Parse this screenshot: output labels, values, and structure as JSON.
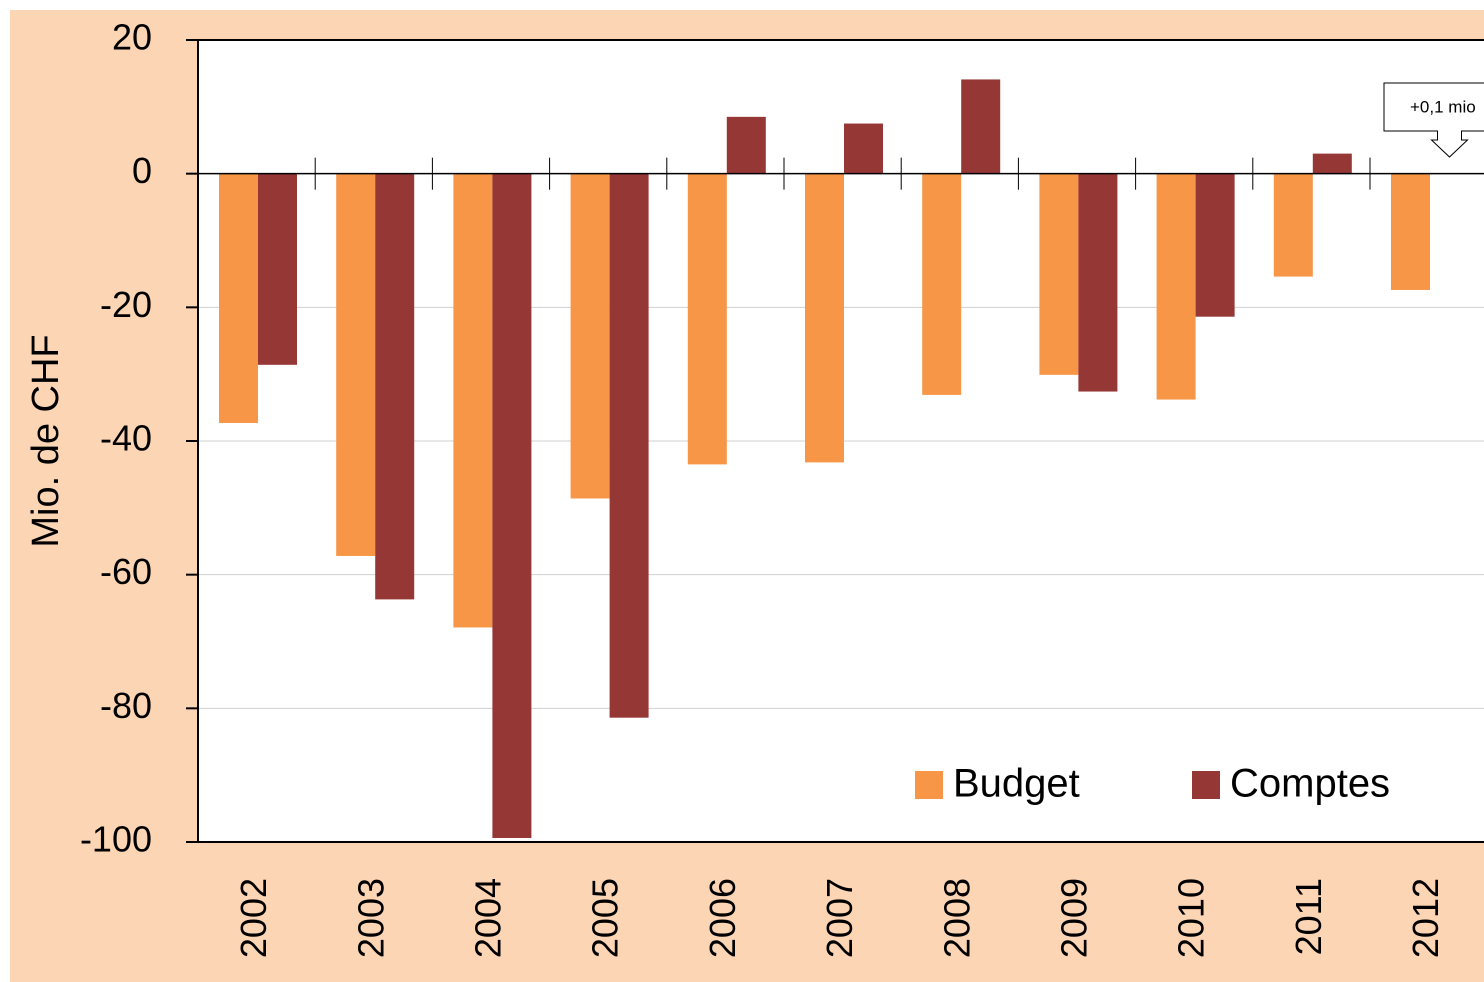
{
  "chart_data": {
    "type": "bar",
    "y_label": "Mio. de CHF",
    "categories": [
      "2002",
      "2003",
      "2004",
      "2005",
      "2006",
      "2007",
      "2008",
      "2009",
      "2010",
      "2011",
      "2012"
    ],
    "series": [
      {
        "name": "Budget",
        "color": "#F79646",
        "values": [
          -37.3,
          -57.2,
          -67.9,
          -48.6,
          -43.5,
          -43.2,
          -33.1,
          -30.1,
          -33.8,
          -15.4,
          -17.4
        ]
      },
      {
        "name": "Comptes",
        "color": "#953735",
        "values": [
          -28.6,
          -63.7,
          -99.4,
          -81.4,
          8.5,
          7.5,
          14.1,
          -32.6,
          -21.4,
          3.0,
          0.1
        ]
      }
    ],
    "ylim": [
      -100,
      20
    ],
    "yticks": [
      20,
      0,
      -20,
      -40,
      -60,
      -80,
      -100
    ],
    "grid": true,
    "annotations": [
      {
        "text": "+0,1 mio",
        "series": 1,
        "category": 10
      }
    ]
  }
}
